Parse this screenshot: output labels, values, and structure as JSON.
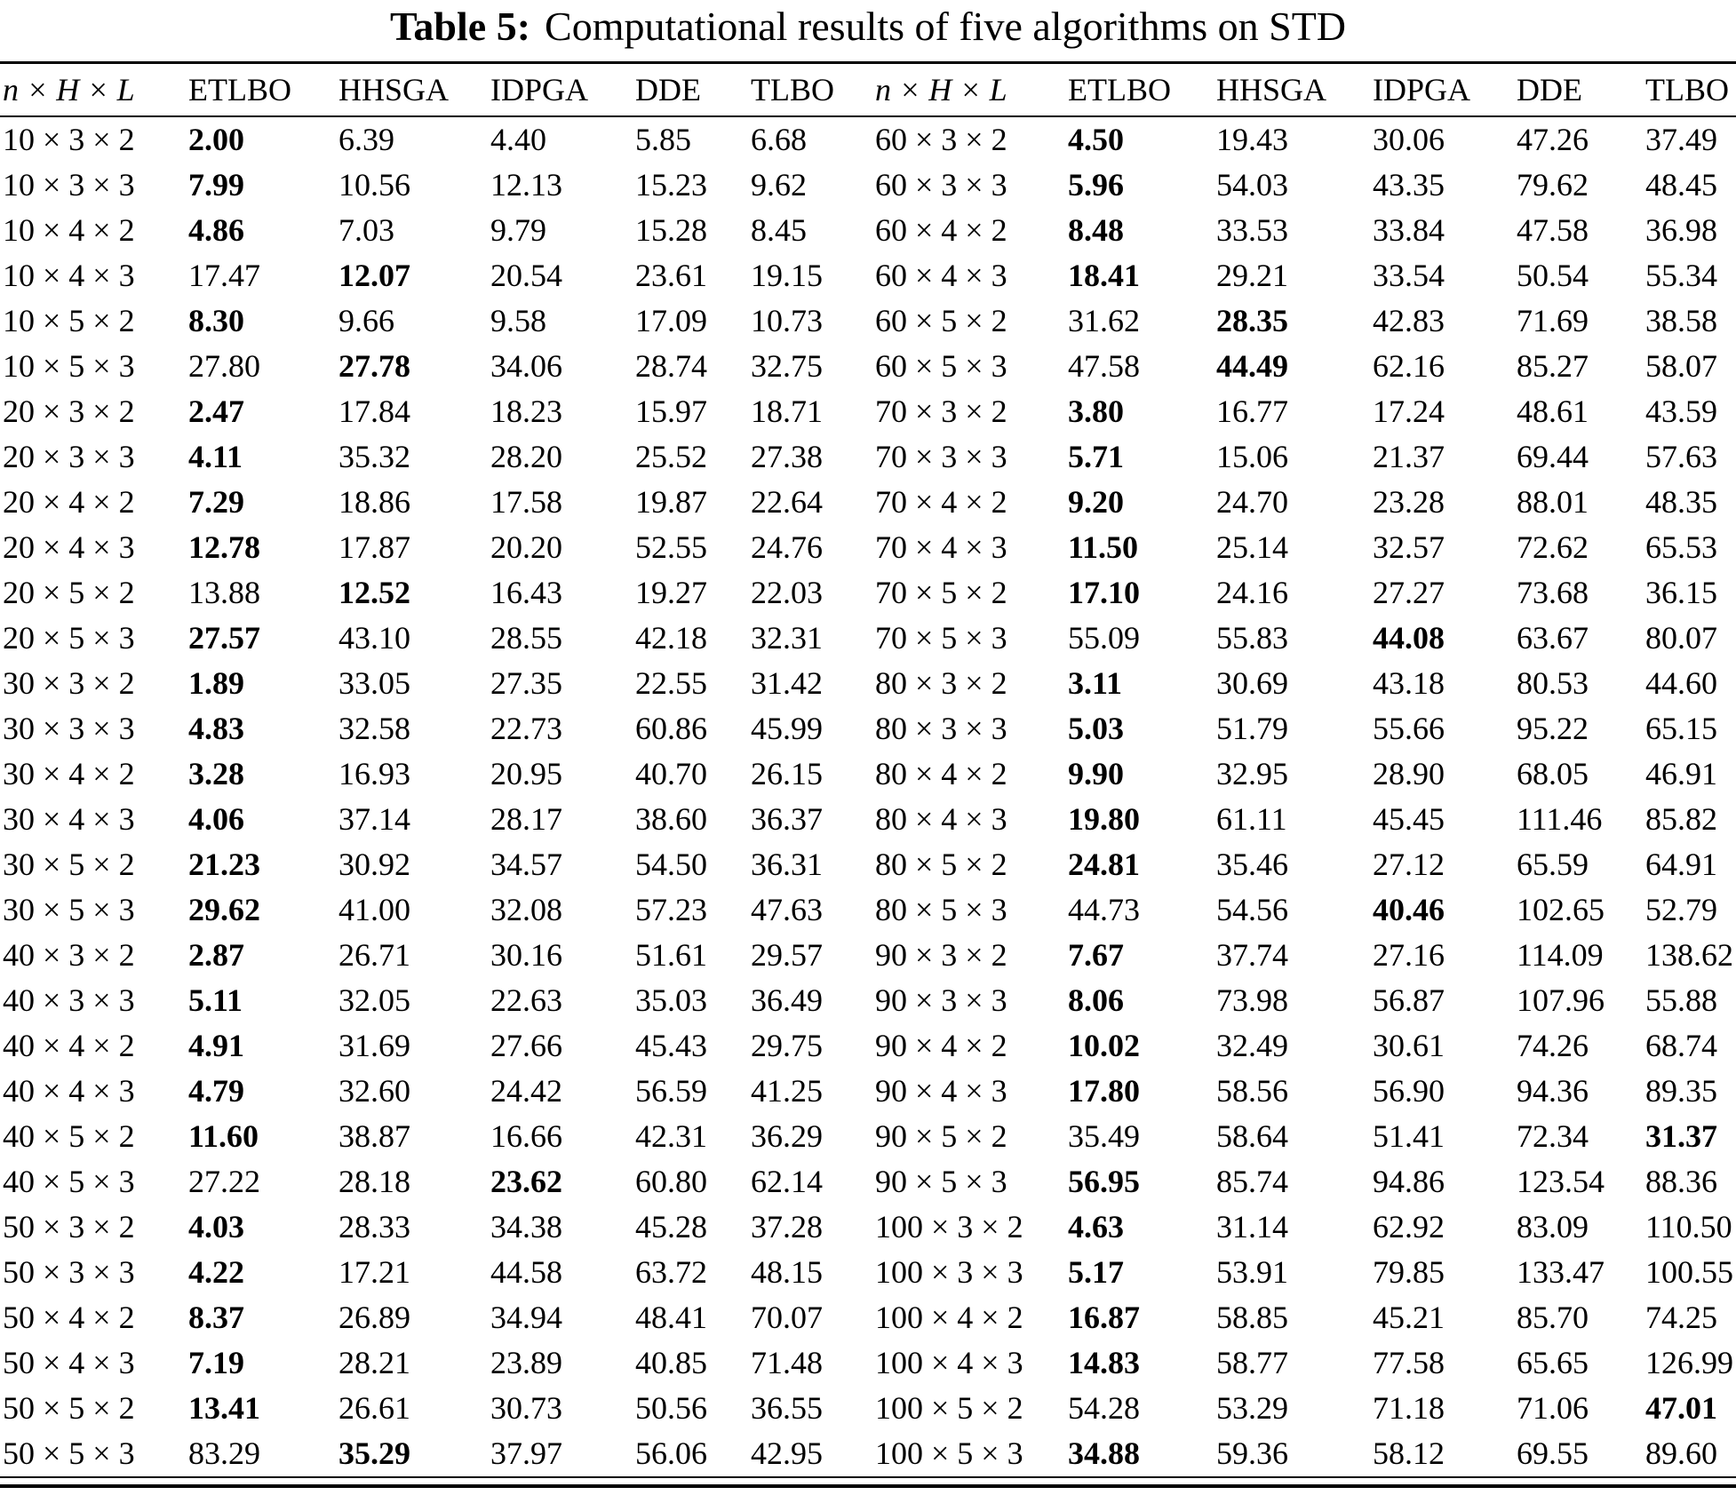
{
  "title": {
    "tag": "Table 5:",
    "text": "Computational results of five algorithms on STD"
  },
  "table": {
    "columns": [
      "n × H × L",
      "ETLBO",
      "HHSGA",
      "IDPGA",
      "DDE",
      "TLBO"
    ],
    "rows_left": [
      {
        "instance": "10 × 3 × 2",
        "values": [
          "2.00",
          "6.39",
          "4.40",
          "5.85",
          "6.68"
        ],
        "bold": 0
      },
      {
        "instance": "10 × 3 × 3",
        "values": [
          "7.99",
          "10.56",
          "12.13",
          "15.23",
          "9.62"
        ],
        "bold": 0
      },
      {
        "instance": "10 × 4 × 2",
        "values": [
          "4.86",
          "7.03",
          "9.79",
          "15.28",
          "8.45"
        ],
        "bold": 0
      },
      {
        "instance": "10 × 4 × 3",
        "values": [
          "17.47",
          "12.07",
          "20.54",
          "23.61",
          "19.15"
        ],
        "bold": 1
      },
      {
        "instance": "10 × 5 × 2",
        "values": [
          "8.30",
          "9.66",
          "9.58",
          "17.09",
          "10.73"
        ],
        "bold": 0
      },
      {
        "instance": "10 × 5 × 3",
        "values": [
          "27.80",
          "27.78",
          "34.06",
          "28.74",
          "32.75"
        ],
        "bold": 1
      },
      {
        "instance": "20 × 3 × 2",
        "values": [
          "2.47",
          "17.84",
          "18.23",
          "15.97",
          "18.71"
        ],
        "bold": 0
      },
      {
        "instance": "20 × 3 × 3",
        "values": [
          "4.11",
          "35.32",
          "28.20",
          "25.52",
          "27.38"
        ],
        "bold": 0
      },
      {
        "instance": "20 × 4 × 2",
        "values": [
          "7.29",
          "18.86",
          "17.58",
          "19.87",
          "22.64"
        ],
        "bold": 0
      },
      {
        "instance": "20 × 4 × 3",
        "values": [
          "12.78",
          "17.87",
          "20.20",
          "52.55",
          "24.76"
        ],
        "bold": 0
      },
      {
        "instance": "20 × 5 × 2",
        "values": [
          "13.88",
          "12.52",
          "16.43",
          "19.27",
          "22.03"
        ],
        "bold": 1
      },
      {
        "instance": "20 × 5 × 3",
        "values": [
          "27.57",
          "43.10",
          "28.55",
          "42.18",
          "32.31"
        ],
        "bold": 0
      },
      {
        "instance": "30 × 3 × 2",
        "values": [
          "1.89",
          "33.05",
          "27.35",
          "22.55",
          "31.42"
        ],
        "bold": 0
      },
      {
        "instance": "30 × 3 × 3",
        "values": [
          "4.83",
          "32.58",
          "22.73",
          "60.86",
          "45.99"
        ],
        "bold": 0
      },
      {
        "instance": "30 × 4 × 2",
        "values": [
          "3.28",
          "16.93",
          "20.95",
          "40.70",
          "26.15"
        ],
        "bold": 0
      },
      {
        "instance": "30 × 4 × 3",
        "values": [
          "4.06",
          "37.14",
          "28.17",
          "38.60",
          "36.37"
        ],
        "bold": 0
      },
      {
        "instance": "30 × 5 × 2",
        "values": [
          "21.23",
          "30.92",
          "34.57",
          "54.50",
          "36.31"
        ],
        "bold": 0
      },
      {
        "instance": "30 × 5 × 3",
        "values": [
          "29.62",
          "41.00",
          "32.08",
          "57.23",
          "47.63"
        ],
        "bold": 0
      },
      {
        "instance": "40 × 3 × 2",
        "values": [
          "2.87",
          "26.71",
          "30.16",
          "51.61",
          "29.57"
        ],
        "bold": 0
      },
      {
        "instance": "40 × 3 × 3",
        "values": [
          "5.11",
          "32.05",
          "22.63",
          "35.03",
          "36.49"
        ],
        "bold": 0
      },
      {
        "instance": "40 × 4 × 2",
        "values": [
          "4.91",
          "31.69",
          "27.66",
          "45.43",
          "29.75"
        ],
        "bold": 0
      },
      {
        "instance": "40 × 4 × 3",
        "values": [
          "4.79",
          "32.60",
          "24.42",
          "56.59",
          "41.25"
        ],
        "bold": 0
      },
      {
        "instance": "40 × 5 × 2",
        "values": [
          "11.60",
          "38.87",
          "16.66",
          "42.31",
          "36.29"
        ],
        "bold": 0
      },
      {
        "instance": "40 × 5 × 3",
        "values": [
          "27.22",
          "28.18",
          "23.62",
          "60.80",
          "62.14"
        ],
        "bold": 2
      },
      {
        "instance": "50 × 3 × 2",
        "values": [
          "4.03",
          "28.33",
          "34.38",
          "45.28",
          "37.28"
        ],
        "bold": 0
      },
      {
        "instance": "50 × 3 × 3",
        "values": [
          "4.22",
          "17.21",
          "44.58",
          "63.72",
          "48.15"
        ],
        "bold": 0
      },
      {
        "instance": "50 × 4 × 2",
        "values": [
          "8.37",
          "26.89",
          "34.94",
          "48.41",
          "70.07"
        ],
        "bold": 0
      },
      {
        "instance": "50 × 4 × 3",
        "values": [
          "7.19",
          "28.21",
          "23.89",
          "40.85",
          "71.48"
        ],
        "bold": 0
      },
      {
        "instance": "50 × 5 × 2",
        "values": [
          "13.41",
          "26.61",
          "30.73",
          "50.56",
          "36.55"
        ],
        "bold": 0
      },
      {
        "instance": "50 × 5 × 3",
        "values": [
          "83.29",
          "35.29",
          "37.97",
          "56.06",
          "42.95"
        ],
        "bold": 1
      }
    ],
    "rows_right": [
      {
        "instance": "60 × 3 × 2",
        "values": [
          "4.50",
          "19.43",
          "30.06",
          "47.26",
          "37.49"
        ],
        "bold": 0
      },
      {
        "instance": "60 × 3 × 3",
        "values": [
          "5.96",
          "54.03",
          "43.35",
          "79.62",
          "48.45"
        ],
        "bold": 0
      },
      {
        "instance": "60 × 4 × 2",
        "values": [
          "8.48",
          "33.53",
          "33.84",
          "47.58",
          "36.98"
        ],
        "bold": 0
      },
      {
        "instance": "60 × 4 × 3",
        "values": [
          "18.41",
          "29.21",
          "33.54",
          "50.54",
          "55.34"
        ],
        "bold": 0
      },
      {
        "instance": "60 × 5 × 2",
        "values": [
          "31.62",
          "28.35",
          "42.83",
          "71.69",
          "38.58"
        ],
        "bold": 1
      },
      {
        "instance": "60 × 5 × 3",
        "values": [
          "47.58",
          "44.49",
          "62.16",
          "85.27",
          "58.07"
        ],
        "bold": 1
      },
      {
        "instance": "70 × 3 × 2",
        "values": [
          "3.80",
          "16.77",
          "17.24",
          "48.61",
          "43.59"
        ],
        "bold": 0
      },
      {
        "instance": "70 × 3 × 3",
        "values": [
          "5.71",
          "15.06",
          "21.37",
          "69.44",
          "57.63"
        ],
        "bold": 0
      },
      {
        "instance": "70 × 4 × 2",
        "values": [
          "9.20",
          "24.70",
          "23.28",
          "88.01",
          "48.35"
        ],
        "bold": 0
      },
      {
        "instance": "70 × 4 × 3",
        "values": [
          "11.50",
          "25.14",
          "32.57",
          "72.62",
          "65.53"
        ],
        "bold": 0
      },
      {
        "instance": "70 × 5 × 2",
        "values": [
          "17.10",
          "24.16",
          "27.27",
          "73.68",
          "36.15"
        ],
        "bold": 0
      },
      {
        "instance": "70 × 5 × 3",
        "values": [
          "55.09",
          "55.83",
          "44.08",
          "63.67",
          "80.07"
        ],
        "bold": 2
      },
      {
        "instance": "80 × 3 × 2",
        "values": [
          "3.11",
          "30.69",
          "43.18",
          "80.53",
          "44.60"
        ],
        "bold": 0
      },
      {
        "instance": "80 × 3 × 3",
        "values": [
          "5.03",
          "51.79",
          "55.66",
          "95.22",
          "65.15"
        ],
        "bold": 0
      },
      {
        "instance": "80 × 4 × 2",
        "values": [
          "9.90",
          "32.95",
          "28.90",
          "68.05",
          "46.91"
        ],
        "bold": 0
      },
      {
        "instance": "80 × 4 × 3",
        "values": [
          "19.80",
          "61.11",
          "45.45",
          "111.46",
          "85.82"
        ],
        "bold": 0
      },
      {
        "instance": "80 × 5 × 2",
        "values": [
          "24.81",
          "35.46",
          "27.12",
          "65.59",
          "64.91"
        ],
        "bold": 0
      },
      {
        "instance": "80 × 5 × 3",
        "values": [
          "44.73",
          "54.56",
          "40.46",
          "102.65",
          "52.79"
        ],
        "bold": 2
      },
      {
        "instance": "90 × 3 × 2",
        "values": [
          "7.67",
          "37.74",
          "27.16",
          "114.09",
          "138.62"
        ],
        "bold": 0
      },
      {
        "instance": "90 × 3 × 3",
        "values": [
          "8.06",
          "73.98",
          "56.87",
          "107.96",
          "55.88"
        ],
        "bold": 0
      },
      {
        "instance": "90 × 4 × 2",
        "values": [
          "10.02",
          "32.49",
          "30.61",
          "74.26",
          "68.74"
        ],
        "bold": 0
      },
      {
        "instance": "90 × 4 × 3",
        "values": [
          "17.80",
          "58.56",
          "56.90",
          "94.36",
          "89.35"
        ],
        "bold": 0
      },
      {
        "instance": "90 × 5 × 2",
        "values": [
          "35.49",
          "58.64",
          "51.41",
          "72.34",
          "31.37"
        ],
        "bold": 4
      },
      {
        "instance": "90 × 5 × 3",
        "values": [
          "56.95",
          "85.74",
          "94.86",
          "123.54",
          "88.36"
        ],
        "bold": 0
      },
      {
        "instance": "100 × 3 × 2",
        "values": [
          "4.63",
          "31.14",
          "62.92",
          "83.09",
          "110.50"
        ],
        "bold": 0
      },
      {
        "instance": "100 × 3 × 3",
        "values": [
          "5.17",
          "53.91",
          "79.85",
          "133.47",
          "100.55"
        ],
        "bold": 0
      },
      {
        "instance": "100 × 4 × 2",
        "values": [
          "16.87",
          "58.85",
          "45.21",
          "85.70",
          "74.25"
        ],
        "bold": 0
      },
      {
        "instance": "100 × 4 × 3",
        "values": [
          "14.83",
          "58.77",
          "77.58",
          "65.65",
          "126.99"
        ],
        "bold": 0
      },
      {
        "instance": "100 × 5 × 2",
        "values": [
          "54.28",
          "53.29",
          "71.18",
          "71.06",
          "47.01"
        ],
        "bold": 4
      },
      {
        "instance": "100 × 5 × 3",
        "values": [
          "34.88",
          "59.36",
          "58.12",
          "69.55",
          "89.60"
        ],
        "bold": 0
      }
    ]
  }
}
